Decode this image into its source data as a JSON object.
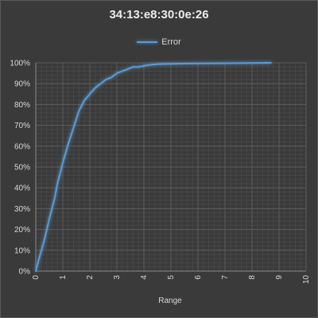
{
  "chart_data": {
    "type": "line",
    "title": "34:13:e8:30:0e:26",
    "xlabel": "Range",
    "ylabel": "",
    "xlim": [
      0,
      10
    ],
    "ylim": [
      0,
      100
    ],
    "x_ticks": [
      "0",
      "1",
      "2",
      "3",
      "4",
      "5",
      "6",
      "7",
      "8",
      "9",
      "10"
    ],
    "y_ticks": [
      "0%",
      "10%",
      "20%",
      "30%",
      "40%",
      "50%",
      "60%",
      "70%",
      "80%",
      "90%",
      "100%"
    ],
    "grid": true,
    "legend_position": "top",
    "series": [
      {
        "name": "Error",
        "color": "#5b9bd5",
        "x": [
          0,
          0.1,
          0.3,
          0.5,
          0.7,
          0.8,
          1.0,
          1.2,
          1.4,
          1.6,
          1.8,
          2.0,
          2.2,
          2.4,
          2.6,
          2.8,
          3.0,
          3.2,
          3.4,
          3.6,
          3.8,
          4.0,
          4.2,
          4.5,
          5.0,
          5.5,
          6.0,
          7.0,
          8.0,
          8.7
        ],
        "y": [
          0,
          5,
          14,
          25,
          35,
          42,
          52,
          61,
          69,
          77,
          82,
          85,
          88,
          90,
          92,
          93,
          95,
          96,
          97,
          98,
          98,
          98.5,
          99,
          99.3,
          99.5,
          99.6,
          99.7,
          99.8,
          99.9,
          100
        ]
      }
    ]
  }
}
